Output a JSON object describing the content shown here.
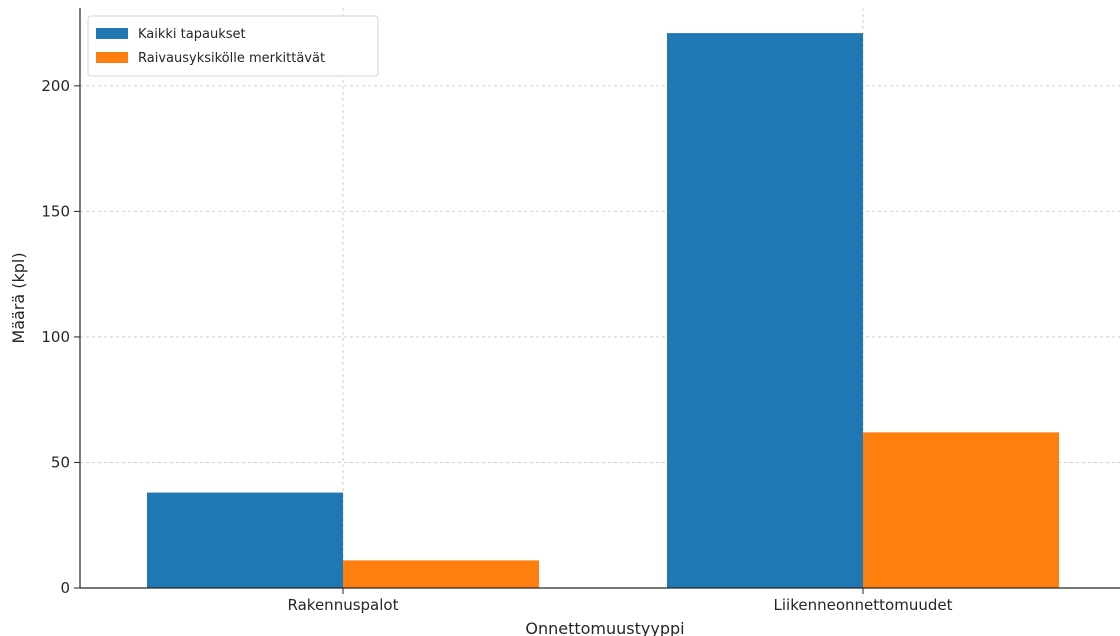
{
  "chart_data": {
    "type": "bar",
    "title": "",
    "xlabel": "Onnettomuustyyppi",
    "ylabel": "Määrä (kpl)",
    "categories": [
      "Rakennuspalot",
      "Liikenneonnettomuudet"
    ],
    "series": [
      {
        "name": "Kaikki tapaukset",
        "values": [
          38,
          221
        ],
        "color": "#1f77b4"
      },
      {
        "name": "Raivausyksikölle merkittävät",
        "values": [
          11,
          62
        ],
        "color": "#ff7f0e"
      }
    ],
    "ylim": [
      0,
      231
    ],
    "yticks": [
      0,
      50,
      100,
      150,
      200
    ],
    "grid": true,
    "legend_position": "top-left"
  }
}
